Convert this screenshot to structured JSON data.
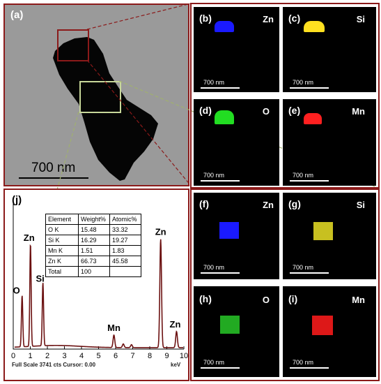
{
  "figure": {
    "panel_a": {
      "label": "(a)",
      "scale": "700 nm"
    },
    "map_panels": [
      {
        "label": "(b)",
        "element": "Zn",
        "scale": "700 nm",
        "color": "#1a1aff"
      },
      {
        "label": "(c)",
        "element": "Si",
        "scale": "700 nm",
        "color": "#ffe020"
      },
      {
        "label": "(d)",
        "element": "O",
        "scale": "700 nm",
        "color": "#22dd22"
      },
      {
        "label": "(e)",
        "element": "Mn",
        "scale": "700 nm",
        "color": "#ff2020"
      },
      {
        "label": "(f)",
        "element": "Zn",
        "scale": "700 nm",
        "color": "#1a1aff"
      },
      {
        "label": "(g)",
        "element": "Si",
        "scale": "700 nm",
        "color": "#d8d020"
      },
      {
        "label": "(h)",
        "element": "O",
        "scale": "700 nm",
        "color": "#22aa22"
      },
      {
        "label": "(i)",
        "element": "Mn",
        "scale": "700 nm",
        "color": "#e01818"
      }
    ],
    "panel_j": {
      "label": "(j)",
      "footer_left": "Full Scale 3741 cts Cursor: 0.00",
      "footer_right": "keV",
      "table": {
        "headers": [
          "Element",
          "Weight%",
          "Atomic%"
        ],
        "rows": [
          [
            "O K",
            "15.48",
            "33.32"
          ],
          [
            "Si K",
            "16.29",
            "19.27"
          ],
          [
            "Mn K",
            "1.51",
            "1.83"
          ],
          [
            "Zn K",
            "66.73",
            "45.58"
          ],
          [
            "Total",
            "100",
            ""
          ]
        ]
      }
    }
  },
  "chart_data": {
    "type": "line",
    "xlabel": "keV",
    "xlim": [
      0,
      10
    ],
    "ylim": [
      0,
      1
    ],
    "xticks": [
      "0",
      "1",
      "2",
      "3",
      "4",
      "5",
      "6",
      "7",
      "8",
      "9",
      "10"
    ],
    "peaks": [
      {
        "label": "O",
        "x": 0.52,
        "y": 0.35
      },
      {
        "label": "Zn",
        "x": 1.01,
        "y": 0.7
      },
      {
        "label": "Si",
        "x": 1.74,
        "y": 0.43
      },
      {
        "label": "Mn",
        "x": 5.9,
        "y": 0.085
      },
      {
        "label": "Zn",
        "x": 8.64,
        "y": 0.74
      },
      {
        "label": "Zn",
        "x": 9.57,
        "y": 0.11
      }
    ],
    "minor_peaks": [
      {
        "x": 6.45,
        "y": 0.025
      },
      {
        "x": 6.93,
        "y": 0.02
      }
    ],
    "line_color": "#6b1010"
  }
}
